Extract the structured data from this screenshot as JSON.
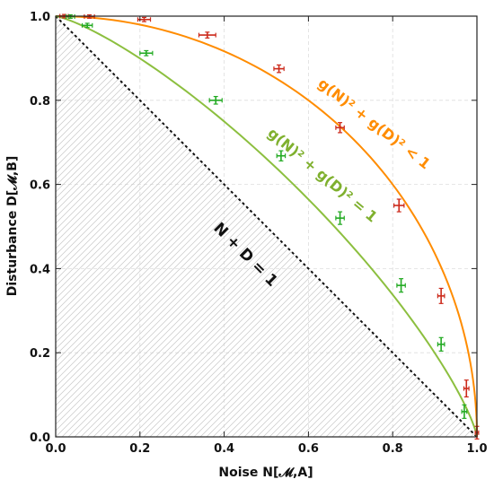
{
  "chart_data": {
    "type": "scatter",
    "xlabel": "Noise N[𝓜,A]",
    "ylabel": "Disturbance D[𝓜,B]",
    "xlim": [
      0,
      1
    ],
    "ylim": [
      0,
      1
    ],
    "x_ticks": [
      "0.0",
      "0.2",
      "0.4",
      "0.6",
      "0.8",
      "1.0"
    ],
    "y_ticks": [
      "0.0",
      "0.2",
      "0.4",
      "0.6",
      "0.8",
      "1.0"
    ],
    "grid": true,
    "series": [
      {
        "color": "#cc2a1b",
        "curve_color": "#ff8c00",
        "x": [
          0.02,
          0.08,
          0.21,
          0.36,
          0.53,
          0.675,
          0.815,
          0.915,
          0.975,
          1.0
        ],
        "y": [
          1.0,
          0.999,
          0.992,
          0.955,
          0.875,
          0.735,
          0.55,
          0.335,
          0.115,
          0.01
        ],
        "x_err": [
          0.01,
          0.012,
          0.015,
          0.02,
          0.012,
          0.01,
          0.012,
          0.008,
          0.006,
          0.004
        ],
        "y_err": [
          0.004,
          0.004,
          0.005,
          0.007,
          0.009,
          0.012,
          0.015,
          0.018,
          0.02,
          0.015
        ]
      },
      {
        "color": "#22aa22",
        "curve_color": "#8cbf3f",
        "x": [
          0.035,
          0.075,
          0.215,
          0.38,
          0.535,
          0.675,
          0.82,
          0.915,
          0.97
        ],
        "y": [
          0.999,
          0.978,
          0.912,
          0.8,
          0.668,
          0.52,
          0.36,
          0.22,
          0.06
        ],
        "x_err": [
          0.01,
          0.012,
          0.015,
          0.015,
          0.01,
          0.01,
          0.01,
          0.008,
          0.006
        ],
        "y_err": [
          0.004,
          0.005,
          0.006,
          0.009,
          0.012,
          0.015,
          0.016,
          0.016,
          0.016
        ]
      }
    ],
    "annotations": [
      {
        "text": "g(N)² + g(D)² < 1",
        "color": "#ff8c00"
      },
      {
        "text": "g(N)² + g(D)² = 1",
        "color": "#7fb02e"
      },
      {
        "text": "N + D = 1",
        "color": "#111111"
      }
    ]
  }
}
